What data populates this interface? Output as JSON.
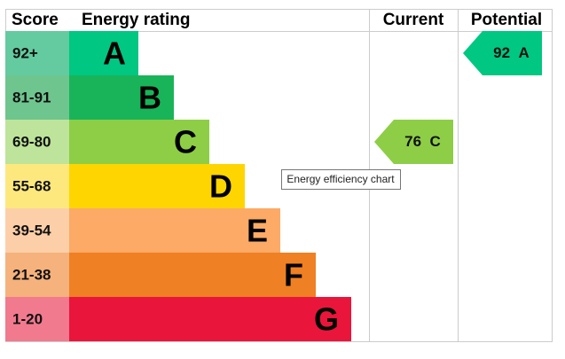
{
  "header": {
    "score": "Score",
    "rating": "Energy rating",
    "current": "Current",
    "potential": "Potential"
  },
  "bands": [
    {
      "score": "92+",
      "letter": "A",
      "color": "#00c781",
      "score_color": "#64caa0"
    },
    {
      "score": "81-91",
      "letter": "B",
      "color": "#19b459",
      "score_color": "#6ec58e"
    },
    {
      "score": "69-80",
      "letter": "C",
      "color": "#8dce46",
      "score_color": "#bde49a"
    },
    {
      "score": "55-68",
      "letter": "D",
      "color": "#ffd500",
      "score_color": "#fde87e"
    },
    {
      "score": "39-54",
      "letter": "E",
      "color": "#fcaa65",
      "score_color": "#fdcfa8"
    },
    {
      "score": "21-38",
      "letter": "F",
      "color": "#ef8023",
      "score_color": "#f5b27c"
    },
    {
      "score": "1-20",
      "letter": "G",
      "color": "#e9153b",
      "score_color": "#f27a8e"
    }
  ],
  "current": {
    "value": "76",
    "letter": "C",
    "band": 2
  },
  "potential": {
    "value": "92",
    "letter": "A",
    "band": 0
  },
  "tooltip": "Energy efficiency chart"
}
